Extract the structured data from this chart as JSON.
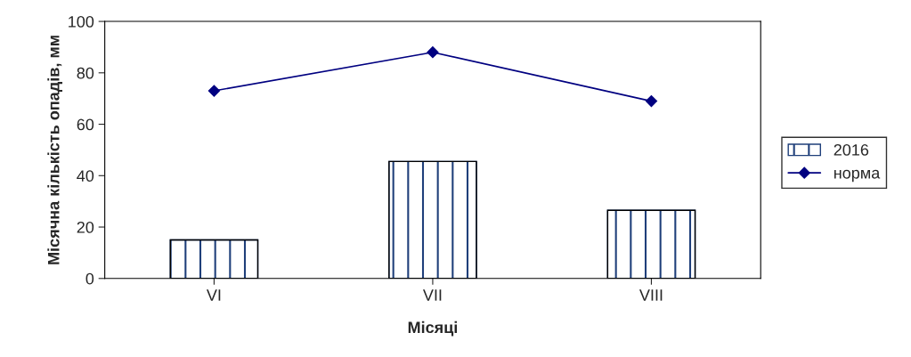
{
  "chart_data": {
    "type": "bar",
    "xlabel": "Місяці",
    "ylabel": "Місячна кількість опадів, мм",
    "categories": [
      "VI",
      "VII",
      "VIII"
    ],
    "series": [
      {
        "name": "2016",
        "color": "#1f3f7a",
        "values": [
          15,
          45.5,
          26.5
        ]
      },
      {
        "name": "норма",
        "type": "line",
        "color": "#000080",
        "values": [
          73,
          88,
          69
        ],
        "marker": "diamond"
      }
    ],
    "ylim": [
      0,
      100
    ],
    "yticks": [
      0,
      20,
      40,
      60,
      80,
      100
    ],
    "grid": false,
    "legend": "right"
  }
}
